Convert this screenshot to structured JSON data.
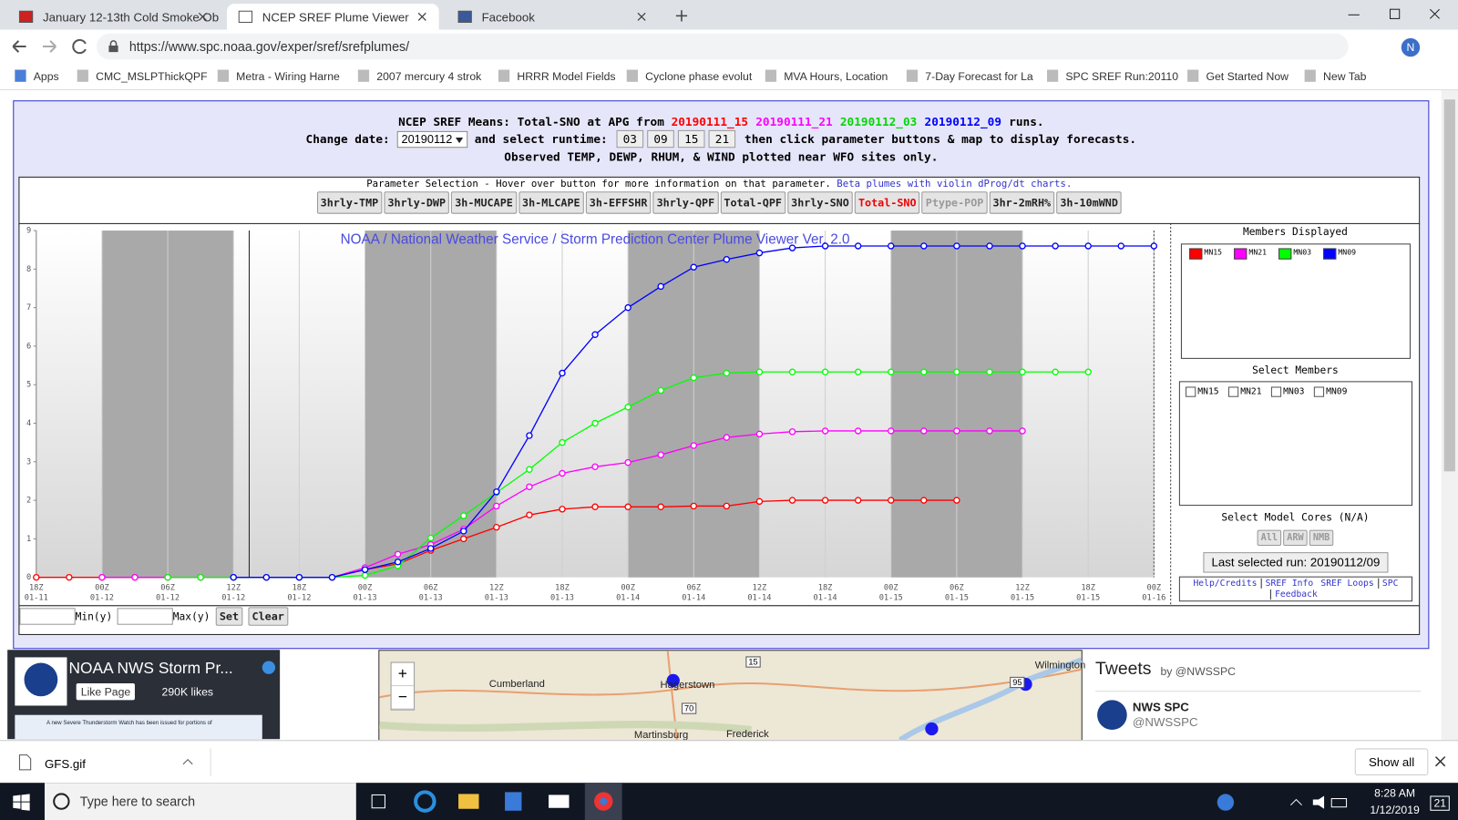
{
  "browser": {
    "tabs": [
      "January 12-13th Cold Smoke Ob",
      "NCEP SREF Plume Viewer",
      "Facebook"
    ],
    "active_tab": "NCEP SREF Plume Viewer",
    "url": "https://www.spc.noaa.gov/exper/sref/srefplumes/",
    "profile": "N",
    "bookmarks": [
      "Apps",
      "CMC_MSLPThickQPF",
      "Metra - Wiring Harne",
      "2007 mercury 4 strok",
      "HRRR Model Fields",
      "Cyclone phase evolut",
      "MVA Hours, Location",
      "7-Day Forecast for La",
      "SPC SREF Run:20110",
      "Get Started Now",
      "New Tab"
    ]
  },
  "header": {
    "line1_prefix": "NCEP SREF Means: Total-SNO at APG from",
    "runs": [
      "20190111_15",
      "20190111_21",
      "20190112_03",
      "20190112_09"
    ],
    "line1_suffix": "runs.",
    "date_label": "Change date:",
    "date": "20190112",
    "runtime_label": "and select runtime:",
    "runtimes": [
      "03",
      "09",
      "15",
      "21"
    ],
    "line2_suffix": "then click parameter buttons & map to display forecasts.",
    "line3": "Observed TEMP, DEWP, RHUM, & WIND plotted near WFO sites only."
  },
  "parameters": {
    "caption": "Parameter Selection - Hover over button for more information on that parameter.",
    "link": "Beta plumes with violin dProg/dt charts.",
    "buttons": [
      "3hrly-TMP",
      "3hrly-DWP",
      "3h-MUCAPE",
      "3h-MLCAPE",
      "3h-EFFSHR",
      "3hrly-QPF",
      "Total-QPF",
      "3hrly-SNO",
      "Total-SNO",
      "Ptype-POP",
      "3hr-2mRH%",
      "3h-10mWND"
    ],
    "selected": "Total-SNO",
    "disabled": [
      "Ptype-POP"
    ]
  },
  "plume_chart": {
    "type": "line",
    "title": "NOAA / National Weather Service / Storm Prediction Center Plume Viewer Ver. 2.0",
    "categories": [
      "18Z",
      null,
      "00Z",
      null,
      "06Z",
      null,
      "12Z",
      null,
      "18Z",
      null,
      "00Z",
      null,
      "06Z",
      null,
      "12Z",
      null,
      "18Z",
      null,
      "00Z",
      null,
      "06Z",
      null,
      "12Z",
      null,
      "18Z",
      null,
      "00Z",
      null,
      "06Z",
      null,
      "12Z",
      null,
      "18Z",
      null,
      "00Z"
    ],
    "category_dates": [
      "01-11",
      null,
      "01-12",
      null,
      "01-12",
      null,
      "01-12",
      null,
      "01-12",
      null,
      "01-13",
      null,
      "01-13",
      null,
      "01-13",
      null,
      "01-13",
      null,
      "01-14",
      null,
      "01-14",
      null,
      "01-14",
      null,
      "01-14",
      null,
      "01-15",
      null,
      "01-15",
      null,
      "01-15",
      null,
      "01-15",
      null,
      "01-16"
    ],
    "series": [
      {
        "name": "MN15",
        "color": "#ff0000",
        "values": [
          0,
          0,
          0,
          0,
          0,
          0,
          0,
          0,
          0,
          0,
          0.2,
          0.35,
          0.7,
          1.0,
          1.3,
          1.62,
          1.77,
          1.83,
          1.83,
          1.83,
          1.85,
          1.85,
          1.97,
          2.0,
          2.0,
          2.0,
          2.0,
          2.0,
          2.0,
          null,
          null,
          null,
          null,
          null,
          null
        ]
      },
      {
        "name": "MN21",
        "color": "#ff00ff",
        "values": [
          null,
          null,
          0,
          0,
          0,
          0,
          0,
          0,
          0,
          0,
          0.25,
          0.6,
          0.85,
          1.25,
          1.85,
          2.35,
          2.7,
          2.87,
          2.98,
          3.18,
          3.42,
          3.63,
          3.72,
          3.78,
          3.8,
          3.8,
          3.8,
          3.8,
          3.8,
          3.8,
          3.8,
          null,
          null,
          null,
          null
        ]
      },
      {
        "name": "MN03",
        "color": "#00ff00",
        "values": [
          null,
          null,
          null,
          null,
          0,
          0,
          0,
          0,
          0,
          0,
          0.05,
          0.3,
          1.02,
          1.6,
          2.2,
          2.8,
          3.5,
          4.0,
          4.42,
          4.85,
          5.18,
          5.3,
          5.33,
          5.33,
          5.33,
          5.33,
          5.33,
          5.33,
          5.33,
          5.33,
          5.33,
          5.33,
          5.33,
          null,
          null
        ]
      },
      {
        "name": "MN09",
        "color": "#0000ff",
        "values": [
          null,
          null,
          null,
          null,
          null,
          null,
          0,
          0,
          0,
          0,
          0.2,
          0.4,
          0.75,
          1.2,
          2.22,
          3.68,
          5.3,
          6.3,
          7.0,
          7.55,
          8.05,
          8.25,
          8.42,
          8.55,
          8.6,
          8.6,
          8.6,
          8.6,
          8.6,
          8.6,
          8.6,
          8.6,
          8.6,
          8.6,
          8.6
        ]
      }
    ],
    "ylim": [
      0,
      9
    ],
    "yticks": [
      0,
      1,
      2,
      3,
      4,
      5,
      6,
      7,
      8,
      9
    ],
    "grid": true
  },
  "controls": {
    "min_label": "Min(y)",
    "max_label": "Max(y)",
    "set": "Set",
    "clear": "Clear"
  },
  "sidebar": {
    "members_displayed": "Members Displayed",
    "select_members": "Select Members",
    "select_cores": "Select Model Cores (N/A)",
    "cores": [
      "All",
      "ARW",
      "NMB"
    ],
    "last_run": "Last selected run: 20190112/09",
    "links": [
      "Help/Credits",
      "SREF Info",
      "SREF Loops",
      "SPC",
      "Feedback"
    ]
  },
  "facebook": {
    "page": "NOAA NWS Storm Pr...",
    "like": "Like Page",
    "likes": "290K likes",
    "banner": "A new Severe Thunderstorm Watch has been issued for portions of"
  },
  "map": {
    "zoom": [
      "+",
      "−"
    ],
    "places": [
      "Cumberland",
      "Hagerstown",
      "Martinsburg",
      "Frederick",
      "Wilmington"
    ],
    "shields": [
      "15",
      "70",
      "95"
    ]
  },
  "twitter": {
    "title": "Tweets",
    "by": "by @NWSSPC",
    "name": "NWS SPC",
    "handle": "@NWSSPC"
  },
  "downloads": {
    "file": "GFS.gif",
    "show_all": "Show all"
  },
  "taskbar": {
    "search": "Type here to search",
    "time": "8:28 AM",
    "date": "1/12/2019",
    "badge": "21"
  }
}
